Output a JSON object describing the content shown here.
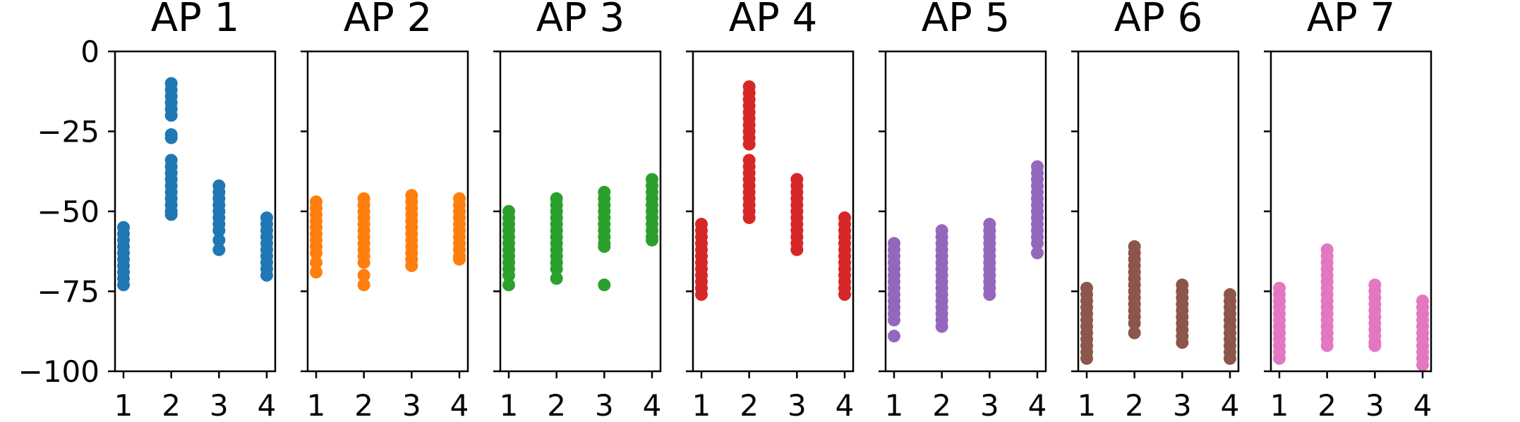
{
  "chart_data": {
    "type": "scatter",
    "ylim": [
      -100,
      0
    ],
    "yticks": [
      0,
      -25,
      -50,
      -75,
      -100
    ],
    "ytick_labels": [
      "0",
      "−25",
      "−50",
      "−75",
      "−100"
    ],
    "xticks": [
      1,
      2,
      3,
      4
    ],
    "xtick_labels": [
      "1",
      "2",
      "3",
      "4"
    ],
    "grid": false,
    "panels": [
      {
        "title": "AP 1",
        "color": "#1f77b4",
        "points": [
          {
            "x": 1,
            "values": [
              -55,
              -57,
              -59,
              -61,
              -63,
              -65,
              -67,
              -69,
              -71,
              -73
            ]
          },
          {
            "x": 2,
            "values": [
              -10,
              -12,
              -14,
              -16,
              -18,
              -20,
              -26,
              -27,
              -34,
              -36,
              -38,
              -40,
              -42,
              -44,
              -46,
              -48,
              -50,
              -51
            ]
          },
          {
            "x": 3,
            "values": [
              -42,
              -44,
              -46,
              -48,
              -50,
              -52,
              -54,
              -56,
              -59,
              -62
            ]
          },
          {
            "x": 4,
            "values": [
              -52,
              -54,
              -56,
              -58,
              -60,
              -62,
              -64,
              -66,
              -68,
              -70
            ]
          }
        ]
      },
      {
        "title": "AP 2",
        "color": "#ff7f0e",
        "points": [
          {
            "x": 1,
            "values": [
              -47,
              -49,
              -51,
              -53,
              -55,
              -57,
              -59,
              -61,
              -63,
              -66,
              -69
            ]
          },
          {
            "x": 2,
            "values": [
              -46,
              -48,
              -50,
              -52,
              -54,
              -56,
              -58,
              -60,
              -62,
              -64,
              -66,
              -70,
              -73
            ]
          },
          {
            "x": 3,
            "values": [
              -45,
              -47,
              -49,
              -51,
              -53,
              -55,
              -57,
              -59,
              -61,
              -63,
              -65,
              -67
            ]
          },
          {
            "x": 4,
            "values": [
              -46,
              -48,
              -50,
              -52,
              -54,
              -56,
              -58,
              -60,
              -62,
              -64,
              -65
            ]
          }
        ]
      },
      {
        "title": "AP 3",
        "color": "#2ca02c",
        "points": [
          {
            "x": 1,
            "values": [
              -50,
              -52,
              -54,
              -56,
              -58,
              -60,
              -62,
              -64,
              -66,
              -68,
              -70,
              -73
            ]
          },
          {
            "x": 2,
            "values": [
              -46,
              -48,
              -50,
              -52,
              -54,
              -56,
              -58,
              -60,
              -62,
              -64,
              -66,
              -68,
              -71
            ]
          },
          {
            "x": 3,
            "values": [
              -44,
              -46,
              -48,
              -50,
              -52,
              -54,
              -56,
              -58,
              -60,
              -61,
              -73
            ]
          },
          {
            "x": 4,
            "values": [
              -40,
              -42,
              -44,
              -46,
              -48,
              -50,
              -52,
              -54,
              -56,
              -58,
              -59
            ]
          }
        ]
      },
      {
        "title": "AP 4",
        "color": "#d62728",
        "points": [
          {
            "x": 1,
            "values": [
              -54,
              -56,
              -58,
              -60,
              -62,
              -64,
              -66,
              -68,
              -70,
              -72,
              -74,
              -76
            ]
          },
          {
            "x": 2,
            "values": [
              -11,
              -13,
              -15,
              -17,
              -19,
              -21,
              -23,
              -25,
              -27,
              -29,
              -34,
              -36,
              -38,
              -40,
              -42,
              -44,
              -46,
              -48,
              -50,
              -52
            ]
          },
          {
            "x": 3,
            "values": [
              -40,
              -42,
              -44,
              -46,
              -48,
              -50,
              -52,
              -54,
              -56,
              -58,
              -60,
              -62
            ]
          },
          {
            "x": 4,
            "values": [
              -52,
              -54,
              -56,
              -58,
              -60,
              -62,
              -64,
              -66,
              -68,
              -70,
              -72,
              -74,
              -76
            ]
          }
        ]
      },
      {
        "title": "AP 5",
        "color": "#9467bd",
        "points": [
          {
            "x": 1,
            "values": [
              -60,
              -62,
              -64,
              -66,
              -68,
              -70,
              -72,
              -74,
              -76,
              -78,
              -80,
              -82,
              -84,
              -89
            ]
          },
          {
            "x": 2,
            "values": [
              -56,
              -58,
              -60,
              -62,
              -64,
              -66,
              -68,
              -70,
              -72,
              -74,
              -76,
              -78,
              -80,
              -82,
              -84,
              -86
            ]
          },
          {
            "x": 3,
            "values": [
              -54,
              -56,
              -58,
              -60,
              -62,
              -64,
              -66,
              -68,
              -70,
              -72,
              -74,
              -76
            ]
          },
          {
            "x": 4,
            "values": [
              -36,
              -38,
              -40,
              -42,
              -44,
              -46,
              -48,
              -50,
              -52,
              -54,
              -56,
              -58,
              -60,
              -63
            ]
          }
        ]
      },
      {
        "title": "AP 6",
        "color": "#8c564b",
        "points": [
          {
            "x": 1,
            "values": [
              -74,
              -76,
              -78,
              -80,
              -82,
              -84,
              -86,
              -88,
              -90,
              -92,
              -94,
              -96
            ]
          },
          {
            "x": 2,
            "values": [
              -61,
              -63,
              -65,
              -67,
              -69,
              -71,
              -73,
              -75,
              -77,
              -79,
              -81,
              -83,
              -85,
              -88
            ]
          },
          {
            "x": 3,
            "values": [
              -73,
              -75,
              -77,
              -79,
              -81,
              -83,
              -85,
              -87,
              -89,
              -91
            ]
          },
          {
            "x": 4,
            "values": [
              -76,
              -78,
              -80,
              -82,
              -84,
              -86,
              -88,
              -90,
              -92,
              -94,
              -96
            ]
          }
        ]
      },
      {
        "title": "AP 7",
        "color": "#e377c2",
        "points": [
          {
            "x": 1,
            "values": [
              -74,
              -76,
              -78,
              -80,
              -82,
              -84,
              -86,
              -88,
              -90,
              -92,
              -94,
              -96
            ]
          },
          {
            "x": 2,
            "values": [
              -62,
              -64,
              -66,
              -68,
              -70,
              -72,
              -74,
              -76,
              -78,
              -80,
              -82,
              -84,
              -86,
              -88,
              -90,
              -92
            ]
          },
          {
            "x": 3,
            "values": [
              -73,
              -75,
              -77,
              -79,
              -81,
              -83,
              -85,
              -87,
              -89,
              -91,
              -92
            ]
          },
          {
            "x": 4,
            "values": [
              -78,
              -80,
              -82,
              -84,
              -86,
              -88,
              -90,
              -92,
              -94,
              -96,
              -98
            ]
          }
        ]
      }
    ]
  }
}
